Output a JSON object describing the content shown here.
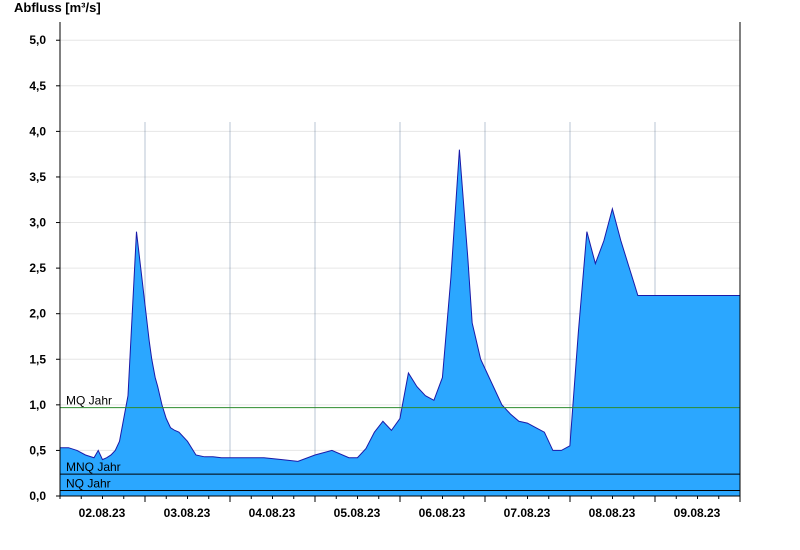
{
  "chart_data": {
    "type": "area",
    "ylabel": "Abfluss [m³/s]",
    "ylim": [
      0,
      5.2
    ],
    "y_ticks": [
      "5,0",
      "4,5",
      "4,0",
      "3,5",
      "3,0",
      "2,5",
      "2,0",
      "1,5",
      "1,0",
      "0,5",
      "0,0"
    ],
    "y_tick_values": [
      5.0,
      4.5,
      4.0,
      3.5,
      3.0,
      2.5,
      2.0,
      1.5,
      1.0,
      0.5,
      0.0
    ],
    "x_ticks": [
      "02.08.23",
      "03.08.23",
      "04.08.23",
      "05.08.23",
      "06.08.23",
      "07.08.23",
      "08.08.23",
      "09.08.23"
    ],
    "grid": true,
    "colors": {
      "area_fill": "#2ba7ff",
      "area_line": "#1a1aa8",
      "mq_line": "#2e8b2e",
      "ref_line": "#000000",
      "grid": "#e6e6e6"
    },
    "reference_lines": [
      {
        "name": "MQ Jahr",
        "value": 0.97
      },
      {
        "name": "MNQ Jahr",
        "value": 0.24
      },
      {
        "name": "NQ Jahr",
        "value": 0.06
      }
    ],
    "series": [
      {
        "x_days": [
          0.0,
          0.1,
          0.2,
          0.3,
          0.4,
          0.45,
          0.5,
          0.55,
          0.6,
          0.65,
          0.7,
          0.8,
          0.9,
          0.95,
          1.0,
          1.05,
          1.08,
          1.1,
          1.12,
          1.15,
          1.2,
          1.25,
          1.3,
          1.35,
          1.4,
          1.5,
          1.6,
          1.7,
          1.8,
          1.9,
          2.0,
          2.2,
          2.4,
          2.6,
          2.8,
          3.0,
          3.2,
          3.4,
          3.5,
          3.6,
          3.7,
          3.8,
          3.9,
          4.0,
          4.1,
          4.2,
          4.3,
          4.4,
          4.5,
          4.6,
          4.7,
          4.8,
          4.85,
          4.9,
          4.95,
          5.0,
          5.1,
          5.2,
          5.3,
          5.4,
          5.5,
          5.6,
          5.7,
          5.8,
          5.9,
          6.0,
          6.1,
          6.2,
          6.3,
          6.4,
          6.5,
          6.6,
          6.7,
          6.8,
          6.9,
          7.0,
          7.1,
          7.2,
          7.3,
          7.35,
          7.4,
          7.5,
          7.6,
          7.7,
          7.8,
          7.9,
          8.0
        ],
        "values": [
          0.53,
          0.53,
          0.5,
          0.45,
          0.42,
          0.5,
          0.4,
          0.42,
          0.45,
          0.5,
          0.6,
          1.1,
          2.9,
          2.5,
          2.1,
          1.7,
          1.5,
          1.4,
          1.3,
          1.2,
          1.0,
          0.85,
          0.75,
          0.72,
          0.7,
          0.6,
          0.45,
          0.43,
          0.43,
          0.42,
          0.42,
          0.42,
          0.42,
          0.4,
          0.38,
          0.45,
          0.5,
          0.42,
          0.42,
          0.52,
          0.7,
          0.82,
          0.72,
          0.85,
          1.35,
          1.2,
          1.1,
          1.05,
          1.3,
          2.4,
          3.8,
          2.6,
          1.9,
          1.7,
          1.5,
          1.4,
          1.2,
          1.0,
          0.9,
          0.82,
          0.8,
          0.75,
          0.7,
          0.5,
          0.5,
          0.55,
          1.8,
          2.9,
          2.55,
          2.8,
          3.15,
          2.8,
          2.5,
          2.2,
          2.2,
          2.2,
          2.2,
          2.2,
          2.2,
          2.2,
          2.2,
          2.2,
          2.2,
          2.2,
          2.2,
          2.2,
          2.2
        ]
      }
    ]
  }
}
